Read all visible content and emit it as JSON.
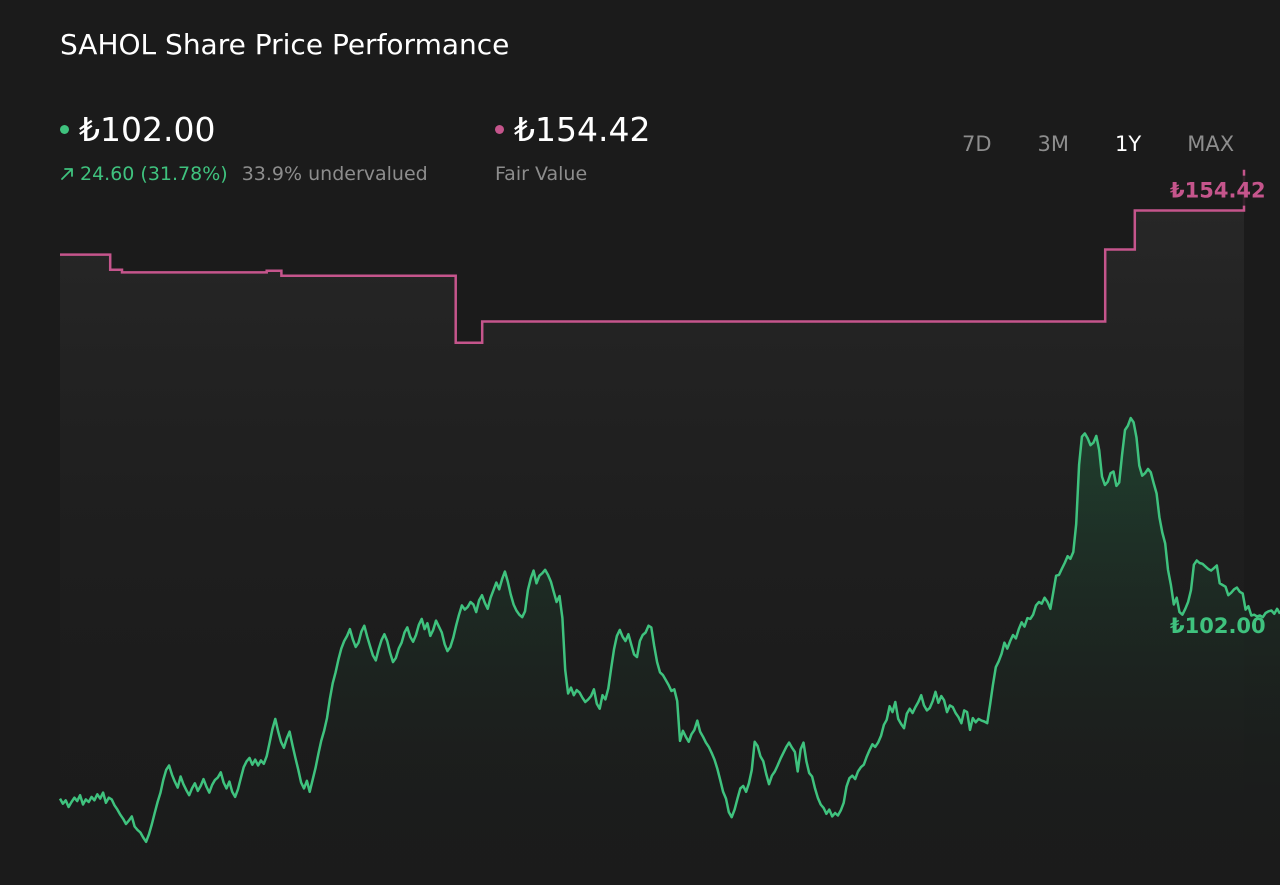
{
  "title": "SAHOL Share Price Performance",
  "colors": {
    "price": "#3fc27e",
    "fair_value": "#c5558c",
    "muted": "#8d8d8d",
    "background": "#1b1b1b"
  },
  "price_stat": {
    "value": "₺102.00",
    "change": "24.60 (31.78%)",
    "valuation": "33.9% undervalued",
    "icon": "arrow-up-right-icon"
  },
  "fair_value_stat": {
    "value": "₺154.42",
    "label": "Fair Value"
  },
  "tabs": [
    {
      "label": "7D",
      "active": false
    },
    {
      "label": "3M",
      "active": false
    },
    {
      "label": "1Y",
      "active": true
    },
    {
      "label": "MAX",
      "active": false
    }
  ],
  "chart_data": {
    "type": "line",
    "ylim": [
      70,
      165
    ],
    "end_labels": {
      "price": "₺102.00",
      "fair_value": "₺154.42"
    },
    "series": [
      {
        "key": "fair_value",
        "step": true,
        "values": [
          144.4,
          144.4,
          144.4,
          144.4,
          144.4,
          144.4,
          144.4,
          144.4,
          144.4,
          144.4,
          144.4,
          144.4,
          144.4,
          144.4,
          144.4,
          144.4,
          144.4,
          142.6,
          142.6,
          142.6,
          142.6,
          142.3,
          142.3,
          142.3,
          142.3,
          142.3,
          142.3,
          142.3,
          142.3,
          142.3,
          142.3,
          142.3,
          142.3,
          142.3,
          142.3,
          142.3,
          142.3,
          142.3,
          142.3,
          142.3,
          142.3,
          142.3,
          142.3,
          142.3,
          142.3,
          142.3,
          142.3,
          142.3,
          142.3,
          142.3,
          142.3,
          142.3,
          142.3,
          142.3,
          142.3,
          142.3,
          142.3,
          142.3,
          142.3,
          142.3,
          142.3,
          142.3,
          142.3,
          142.3,
          142.3,
          142.3,
          142.3,
          142.3,
          142.3,
          142.3,
          142.5,
          142.5,
          142.5,
          142.5,
          142.5,
          141.9,
          141.9,
          141.9,
          141.9,
          141.9,
          141.9,
          141.9,
          141.9,
          141.9,
          141.9,
          141.9,
          141.9,
          141.9,
          141.9,
          141.9,
          141.9,
          141.9,
          141.9,
          141.9,
          141.9,
          141.9,
          141.9,
          141.9,
          141.9,
          141.9,
          141.9,
          141.9,
          141.9,
          141.9,
          141.9,
          141.9,
          141.9,
          141.9,
          141.9,
          141.9,
          141.9,
          141.9,
          141.9,
          141.9,
          141.9,
          141.9,
          141.9,
          141.9,
          141.9,
          141.9,
          141.9,
          141.9,
          141.9,
          141.9,
          141.9,
          141.9,
          141.9,
          141.9,
          141.9,
          141.9,
          141.9,
          141.9,
          141.9,
          141.9,
          134.0,
          134.0,
          134.0,
          134.0,
          134.0,
          134.0,
          134.0,
          134.0,
          134.0,
          136.5,
          136.5,
          136.5,
          136.5,
          136.5,
          136.5,
          136.5,
          136.5,
          136.5,
          136.5,
          136.5,
          136.5,
          136.5,
          136.5,
          136.5,
          136.5,
          136.5,
          136.5,
          136.5,
          136.5,
          136.5,
          136.5,
          136.5,
          136.5,
          136.5,
          136.5,
          136.5,
          136.5,
          136.5,
          136.5,
          136.5,
          136.5,
          136.5,
          136.5,
          136.5,
          136.5,
          136.5,
          136.5,
          136.5,
          136.5,
          136.5,
          136.5,
          136.5,
          136.5,
          136.5,
          136.5,
          136.5,
          136.5,
          136.5,
          136.5,
          136.5,
          136.5,
          136.5,
          136.5,
          136.5,
          136.5,
          136.5,
          136.5,
          136.5,
          136.5,
          136.5,
          136.5,
          136.5,
          136.5,
          136.5,
          136.5,
          136.5,
          136.5,
          136.5,
          136.5,
          136.5,
          136.5,
          136.5,
          136.5,
          136.5,
          136.5,
          136.5,
          136.5,
          136.5,
          136.5,
          136.5,
          136.5,
          136.5,
          136.5,
          136.5,
          136.5,
          136.5,
          136.5,
          136.5,
          136.5,
          136.5,
          136.5,
          136.5,
          136.5,
          136.5,
          136.5,
          136.5,
          136.5,
          136.5,
          136.5,
          136.5,
          136.5,
          136.5,
          136.5,
          136.5,
          136.5,
          136.5,
          136.5,
          136.5,
          136.5,
          136.5,
          136.5,
          136.5,
          136.5,
          136.5,
          136.5,
          136.5,
          136.5,
          136.5,
          136.5,
          136.5,
          136.5,
          136.5,
          136.5,
          136.5,
          136.5,
          136.5,
          136.5,
          136.5,
          136.5,
          136.5,
          136.5,
          136.5,
          136.5,
          136.5,
          136.5,
          136.5,
          136.5,
          136.5,
          136.5,
          136.5,
          136.5,
          136.5,
          136.5,
          136.5,
          136.5,
          136.5,
          136.5,
          136.5,
          136.5,
          136.5,
          136.5,
          136.5,
          136.5,
          136.5,
          136.5,
          136.5,
          136.5,
          136.5,
          136.5,
          136.5,
          136.5,
          136.5,
          136.5,
          136.5,
          136.5,
          136.5,
          136.5,
          136.5,
          136.5,
          136.5,
          136.5,
          136.5,
          136.5,
          136.5,
          136.5,
          136.5,
          136.5,
          136.5,
          136.5,
          136.5,
          136.5,
          136.5,
          136.5,
          136.5,
          136.5,
          136.5,
          136.5,
          136.5,
          136.5,
          136.5,
          136.5,
          136.5,
          136.5,
          136.5,
          136.5,
          136.5,
          136.5,
          136.5,
          136.5,
          136.5,
          136.5,
          136.5,
          136.5,
          136.5,
          136.5,
          136.5,
          136.5,
          136.5,
          136.5,
          136.5,
          145.0,
          145.0,
          145.0,
          145.0,
          145.0,
          145.0,
          145.0,
          145.0,
          145.0,
          145.0,
          149.6,
          149.6,
          149.6,
          149.6,
          149.6,
          149.6,
          149.6,
          149.6,
          149.6,
          149.6,
          149.6,
          149.6,
          149.6,
          149.6,
          149.6,
          149.6,
          149.6,
          149.6,
          149.6,
          149.6,
          149.6,
          149.6,
          149.6,
          149.6,
          149.6,
          149.6,
          149.6,
          149.6,
          149.6,
          149.6,
          149.6,
          149.6,
          149.6,
          149.6,
          149.6,
          149.6,
          149.6,
          154.42
        ]
      },
      {
        "key": "price",
        "values": [
          80.2,
          79.6,
          80.0,
          79.2,
          79.8,
          80.3,
          79.9,
          80.6,
          79.5,
          80.1,
          79.8,
          80.4,
          80.0,
          80.7,
          80.2,
          80.9,
          79.7,
          80.3,
          80.1,
          79.4,
          78.9,
          78.3,
          77.8,
          77.2,
          77.6,
          78.1,
          76.9,
          76.5,
          76.2,
          75.6,
          75.1,
          76.0,
          77.2,
          78.5,
          79.8,
          80.9,
          82.4,
          83.6,
          84.1,
          83.0,
          82.2,
          81.5,
          82.8,
          81.9,
          81.2,
          80.6,
          81.4,
          82.0,
          81.1,
          81.7,
          82.5,
          81.6,
          80.9,
          81.8,
          82.4,
          82.7,
          83.3,
          82.1,
          81.4,
          82.2,
          81.0,
          80.4,
          81.3,
          82.6,
          83.9,
          84.6,
          85.0,
          84.2,
          84.8,
          84.1,
          84.7,
          84.3,
          85.2,
          86.8,
          88.4,
          89.6,
          88.1,
          86.9,
          86.2,
          87.3,
          88.1,
          86.5,
          85.0,
          83.6,
          82.1,
          81.4,
          82.3,
          81.0,
          82.4,
          83.8,
          85.5,
          87.0,
          88.2,
          89.7,
          91.9,
          93.8,
          95.1,
          96.6,
          97.9,
          98.8,
          99.4,
          100.2,
          99.0,
          98.1,
          98.6,
          99.9,
          100.6,
          99.3,
          98.2,
          97.1,
          96.5,
          97.8,
          98.9,
          99.6,
          98.8,
          97.4,
          96.3,
          96.8,
          97.9,
          98.6,
          99.8,
          100.4,
          99.3,
          98.7,
          99.5,
          100.7,
          101.4,
          100.2,
          100.9,
          99.4,
          100.1,
          101.2,
          100.5,
          99.8,
          98.4,
          97.6,
          98.1,
          99.2,
          100.6,
          101.9,
          103.0,
          102.5,
          102.8,
          103.4,
          103.1,
          102.2,
          103.6,
          104.2,
          103.3,
          102.6,
          103.9,
          104.8,
          105.7,
          104.9,
          106.1,
          107.0,
          105.8,
          104.3,
          103.1,
          102.4,
          101.9,
          101.6,
          102.3,
          104.8,
          106.2,
          107.1,
          105.6,
          106.5,
          106.8,
          107.2,
          106.6,
          105.8,
          104.6,
          103.4,
          104.1,
          101.5,
          95.4,
          92.6,
          93.3,
          92.4,
          93.0,
          92.7,
          92.1,
          91.6,
          91.9,
          92.3,
          93.1,
          91.4,
          90.8,
          92.4,
          91.9,
          93.2,
          95.6,
          97.8,
          99.4,
          100.1,
          99.3,
          98.8,
          99.6,
          98.4,
          97.2,
          96.9,
          98.8,
          99.5,
          99.8,
          100.6,
          100.4,
          98.2,
          96.3,
          95.1,
          94.8,
          94.2,
          93.6,
          92.9,
          93.1,
          91.7,
          87.0,
          88.2,
          87.5,
          86.9,
          87.8,
          88.3,
          89.4,
          88.1,
          87.5,
          86.8,
          86.3,
          85.6,
          84.8,
          83.7,
          82.4,
          81.0,
          80.2,
          78.6,
          78.0,
          78.9,
          80.2,
          81.4,
          81.7,
          81.0,
          82.0,
          83.6,
          86.9,
          86.4,
          85.2,
          84.6,
          83.1,
          81.9,
          82.9,
          83.4,
          84.1,
          84.9,
          85.6,
          86.3,
          86.8,
          86.2,
          85.7,
          83.4,
          86.0,
          86.8,
          84.6,
          83.2,
          82.8,
          81.4,
          80.3,
          79.5,
          79.1,
          78.4,
          78.9,
          78.1,
          78.5,
          78.2,
          78.8,
          79.7,
          81.6,
          82.6,
          82.9,
          82.5,
          83.4,
          83.9,
          84.2,
          85.1,
          85.9,
          86.6,
          86.3,
          86.8,
          87.6,
          88.9,
          89.5,
          91.1,
          90.4,
          91.6,
          89.6,
          89.0,
          88.5,
          90.2,
          90.8,
          90.3,
          91.0,
          91.6,
          92.4,
          91.2,
          90.6,
          90.9,
          91.7,
          92.8,
          91.5,
          92.3,
          91.8,
          90.4,
          91.2,
          91.0,
          90.3,
          89.8,
          89.1,
          90.6,
          90.4,
          88.3,
          89.7,
          89.2,
          89.6,
          89.4,
          89.3,
          89.1,
          91.3,
          93.6,
          95.7,
          96.4,
          97.3,
          98.6,
          97.9,
          98.8,
          99.5,
          99.1,
          100.2,
          101.0,
          100.5,
          101.5,
          101.4,
          101.9,
          103.0,
          103.4,
          103.2,
          103.9,
          103.4,
          102.6,
          104.5,
          106.5,
          106.6,
          107.3,
          108.0,
          108.8,
          108.5,
          109.3,
          112.6,
          119.6,
          122.9,
          123.3,
          122.7,
          121.9,
          122.2,
          123.0,
          121.3,
          118.2,
          117.2,
          117.6,
          118.6,
          118.8,
          117.1,
          117.5,
          120.8,
          123.7,
          124.2,
          125.1,
          124.6,
          122.8,
          119.5,
          118.3,
          118.6,
          119.1,
          118.7,
          117.4,
          116.2,
          113.4,
          111.6,
          110.3,
          107.2,
          105.4,
          103.1,
          103.9,
          102.2,
          101.9,
          102.6,
          103.4,
          104.8,
          107.8,
          108.3,
          108.0,
          107.9,
          107.6,
          107.3,
          107.1,
          107.4,
          107.7,
          105.6,
          105.4,
          105.2,
          104.2,
          104.5,
          104.9,
          105.1,
          104.6,
          104.4,
          102.5,
          102.9,
          101.8,
          101.9,
          101.7,
          101.8,
          101.6,
          102.1,
          102.3,
          102.4,
          102.0,
          102.6,
          102.0
        ]
      }
    ]
  }
}
